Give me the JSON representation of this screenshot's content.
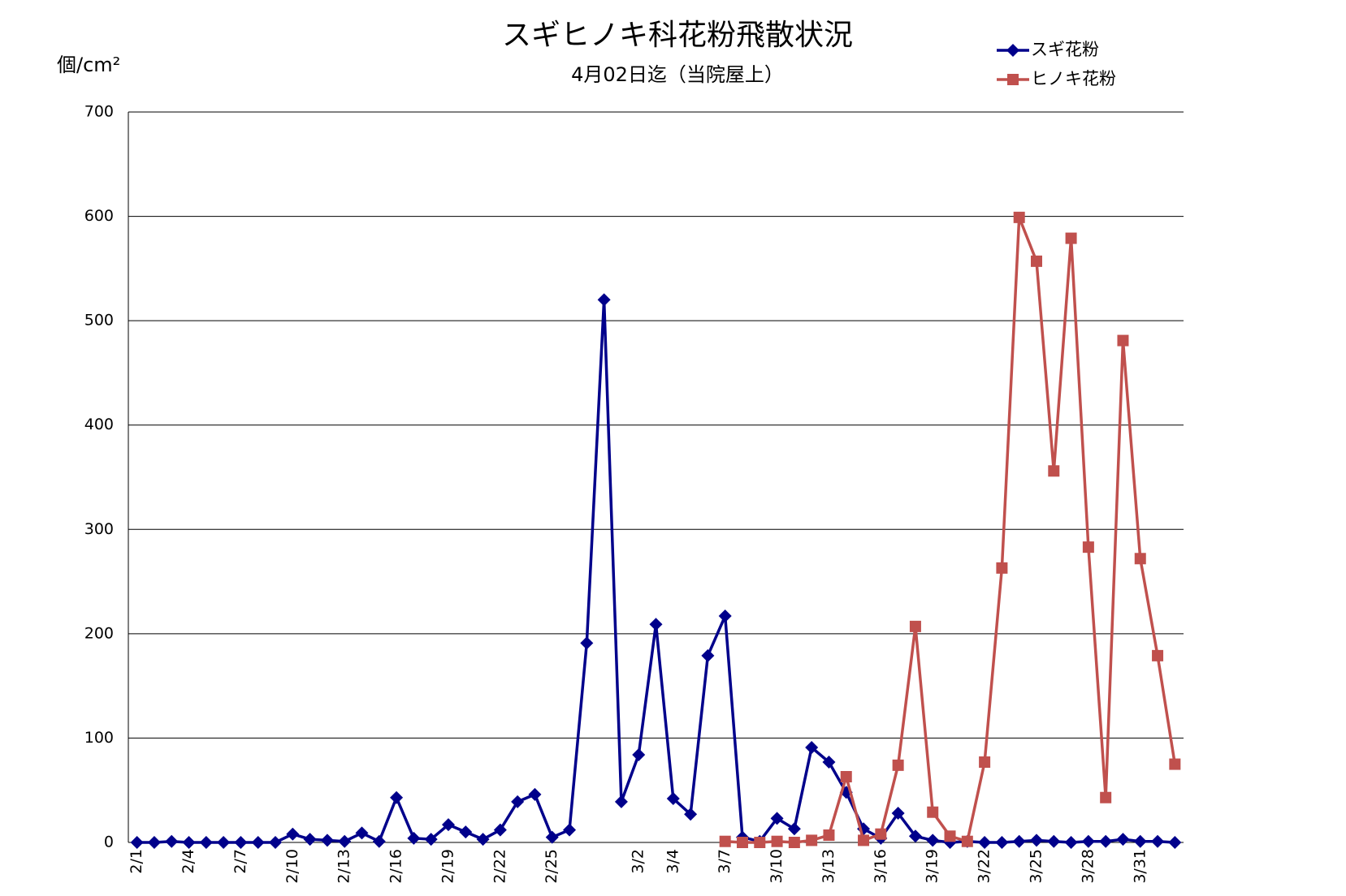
{
  "chart_data": {
    "type": "line",
    "title": "スギヒノキ科花粉飛散状況",
    "subtitle": "4月02日迄（当院屋上）",
    "y_label": "個/cm²",
    "categories": [
      "2/1",
      null,
      null,
      "2/4",
      null,
      null,
      "2/7",
      null,
      null,
      "2/10",
      null,
      null,
      "2/13",
      null,
      null,
      "2/16",
      null,
      null,
      "2/19",
      null,
      null,
      "2/22",
      null,
      null,
      "2/25",
      null,
      null,
      null,
      null,
      "3/2",
      null,
      "3/4",
      null,
      null,
      "3/7",
      null,
      null,
      "3/10",
      null,
      null,
      "3/13",
      null,
      null,
      "3/16",
      null,
      null,
      "3/19",
      null,
      null,
      "3/22",
      null,
      null,
      "3/25",
      null,
      null,
      "3/28",
      null,
      null,
      "3/31",
      null,
      null
    ],
    "series": [
      {
        "name": "スギ花粉",
        "color": "#00008b",
        "marker": "diamond",
        "values": [
          0,
          0,
          1,
          0,
          0,
          0,
          0,
          0,
          0,
          8,
          3,
          2,
          1,
          9,
          1,
          43,
          4,
          3,
          17,
          10,
          3,
          12,
          39,
          46,
          5,
          12,
          191,
          520,
          39,
          84,
          209,
          42,
          27,
          179,
          217,
          5,
          1,
          23,
          13,
          91,
          77,
          48,
          13,
          4,
          28,
          6,
          2,
          0,
          1,
          0,
          0,
          1,
          2,
          1,
          0,
          1,
          1,
          3,
          1,
          1,
          0
        ]
      },
      {
        "name": "ヒノキ花粉",
        "color": "#c0504d",
        "marker": "square",
        "values": [
          null,
          null,
          null,
          null,
          null,
          null,
          null,
          null,
          null,
          null,
          null,
          null,
          null,
          null,
          null,
          null,
          null,
          null,
          null,
          null,
          null,
          null,
          null,
          null,
          null,
          null,
          null,
          null,
          null,
          null,
          null,
          null,
          null,
          null,
          1,
          0,
          0,
          1,
          0,
          2,
          7,
          63,
          2,
          8,
          74,
          207,
          29,
          6,
          1,
          77,
          263,
          599,
          557,
          356,
          579,
          283,
          43,
          481,
          272,
          179,
          75
        ]
      }
    ],
    "ylim": [
      0,
      700
    ],
    "yticks": [
      0,
      100,
      200,
      300,
      400,
      500,
      600,
      700
    ],
    "grid": true,
    "legend": "top-right"
  }
}
